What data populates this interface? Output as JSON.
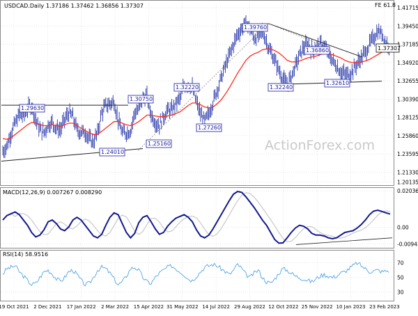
{
  "colors": {
    "background": "#ffffff",
    "frame": "#888888",
    "grid": "#d9d9d9",
    "price_bar": "#2233aa",
    "ema": "#ff2a1a",
    "trendline": "#222222",
    "macd_line": "#101890",
    "signal_line": "#c8c8c8",
    "rsi_line": "#4fa3e6",
    "label_border": "#1a1aa0",
    "label_text": "#1a1aa0",
    "watermark": "#c9c9c9",
    "last_price_box": "#ffffff"
  },
  "watermark": "ActionForex.com",
  "chart_data": [
    {
      "type": "line",
      "title": "USDCAD.Daily",
      "ohlc_text": "1.37186 1.37462 1.36856 1.37307",
      "top_right_label": "FE 61.8",
      "last_price": 1.37307,
      "last_price_label": "1.37307",
      "ylim": [
        1.199,
        1.4232
      ],
      "y_ticks": [
        "1.41715",
        "1.39450",
        "1.37185",
        "1.34920",
        "1.32655",
        "1.30390",
        "1.28125",
        "1.25860",
        "1.23595",
        "1.21330",
        "1.20135"
      ],
      "x_ticks": [
        "19 Oct 2021",
        "2 Dec 2021",
        "17 Jan 2022",
        "2 Mar 2022",
        "15 Apr 2022",
        "31 May 2022",
        "14 Jul 2022",
        "29 Aug 2022",
        "12 Oct 2022",
        "25 Nov 2022",
        "10 Jan 2023",
        "23 Feb 2023"
      ],
      "series": [
        {
          "kind": "price",
          "values": [
            1.239,
            1.246,
            1.262,
            1.274,
            1.284,
            1.283,
            1.292,
            1.296,
            1.278,
            1.266,
            1.262,
            1.272,
            1.275,
            1.268,
            1.266,
            1.278,
            1.287,
            1.282,
            1.266,
            1.263,
            1.263,
            1.254,
            1.251,
            1.262,
            1.287,
            1.296,
            1.298,
            1.301,
            1.278,
            1.262,
            1.262,
            1.265,
            1.287,
            1.291,
            1.305,
            1.307,
            1.285,
            1.275,
            1.272,
            1.282,
            1.29,
            1.29,
            1.298,
            1.305,
            1.32,
            1.322,
            1.318,
            1.3,
            1.285,
            1.276,
            1.286,
            1.3,
            1.315,
            1.33,
            1.345,
            1.358,
            1.372,
            1.385,
            1.391,
            1.398,
            1.392,
            1.38,
            1.38,
            1.388,
            1.375,
            1.362,
            1.352,
            1.34,
            1.328,
            1.322,
            1.332,
            1.345,
            1.358,
            1.368,
            1.372,
            1.365,
            1.368,
            1.371,
            1.369,
            1.36,
            1.352,
            1.345,
            1.338,
            1.334,
            1.335,
            1.34,
            1.348,
            1.355,
            1.362,
            1.372,
            1.38,
            1.388,
            1.385,
            1.373,
            1.371
          ]
        },
        {
          "kind": "ema",
          "values": [
            1.255,
            1.254,
            1.256,
            1.26,
            1.264,
            1.268,
            1.272,
            1.275,
            1.274,
            1.272,
            1.271,
            1.271,
            1.272,
            1.271,
            1.27,
            1.272,
            1.274,
            1.274,
            1.271,
            1.268,
            1.265,
            1.262,
            1.26,
            1.26,
            1.264,
            1.268,
            1.272,
            1.276,
            1.276,
            1.274,
            1.272,
            1.271,
            1.273,
            1.276,
            1.28,
            1.284,
            1.284,
            1.283,
            1.282,
            1.282,
            1.283,
            1.284,
            1.286,
            1.288,
            1.292,
            1.296,
            1.299,
            1.299,
            1.297,
            1.294,
            1.293,
            1.294,
            1.298,
            1.303,
            1.31,
            1.318,
            1.327,
            1.336,
            1.344,
            1.352,
            1.357,
            1.36,
            1.362,
            1.365,
            1.366,
            1.366,
            1.364,
            1.361,
            1.357,
            1.352,
            1.35,
            1.35,
            1.351,
            1.353,
            1.355,
            1.356,
            1.357,
            1.359,
            1.36,
            1.36,
            1.359,
            1.357,
            1.355,
            1.352,
            1.35,
            1.349,
            1.349,
            1.35,
            1.351,
            1.353,
            1.356,
            1.359,
            1.362,
            1.364,
            1.365
          ]
        }
      ],
      "annotations": [
        "1.29630",
        "1.24010",
        "1.30750",
        "1.25160",
        "1.32220",
        "1.27260",
        "1.39760",
        "1.32240",
        "1.36860",
        "1.32610"
      ]
    },
    {
      "type": "line",
      "title": "MACD(12,26,9) 0.007267 0.008290",
      "ylim": [
        -0.0112,
        0.0212
      ],
      "y_ticks": [
        "0.02036",
        "0.00",
        "-0.009438"
      ],
      "series": [
        {
          "kind": "macd",
          "values": [
            0.004,
            0.0065,
            0.0075,
            0.0085,
            0.007,
            0.004,
            0.001,
            -0.003,
            -0.0055,
            -0.0045,
            -0.0015,
            0.003,
            0.004,
            0.002,
            -0.001,
            -0.002,
            0.0,
            0.004,
            0.0055,
            0.004,
            0.001,
            -0.002,
            -0.005,
            -0.006,
            -0.004,
            0.001,
            0.0055,
            0.008,
            0.007,
            0.002,
            -0.003,
            -0.006,
            -0.0035,
            0.0025,
            0.0055,
            0.0065,
            0.003,
            -0.001,
            -0.004,
            -0.003,
            0.0005,
            0.003,
            0.005,
            0.006,
            0.007,
            0.0055,
            0.003,
            -0.0015,
            -0.005,
            -0.006,
            -0.0045,
            -0.001,
            0.003,
            0.007,
            0.011,
            0.015,
            0.0185,
            0.02,
            0.0195,
            0.017,
            0.014,
            0.011,
            0.0075,
            0.004,
            0.001,
            -0.003,
            -0.007,
            -0.009,
            -0.0088,
            -0.006,
            -0.003,
            -0.0005,
            0.001,
            0.0005,
            -0.001,
            -0.0035,
            -0.0045,
            -0.0045,
            -0.005,
            -0.006,
            -0.0065,
            -0.006,
            -0.0045,
            -0.003,
            -0.0025,
            -0.002,
            -0.0005,
            0.0015,
            0.004,
            0.007,
            0.009,
            0.0095,
            0.0088,
            0.008,
            0.0073
          ]
        }
      ]
    },
    {
      "type": "line",
      "title": "RSI(14) 58.9516",
      "ylim": [
        20,
        85
      ],
      "y_ticks": [
        "70",
        "50",
        "30"
      ],
      "series": [
        {
          "kind": "rsi",
          "values": [
            55,
            62,
            64,
            66,
            58,
            52,
            46,
            40,
            42,
            50,
            58,
            60,
            55,
            48,
            45,
            50,
            58,
            60,
            54,
            46,
            40,
            42,
            50,
            60,
            64,
            62,
            56,
            48,
            40,
            44,
            52,
            62,
            64,
            60,
            50,
            44,
            42,
            50,
            56,
            60,
            64,
            66,
            62,
            58,
            54,
            48,
            46,
            52,
            58,
            64,
            66,
            68,
            66,
            62,
            58,
            54,
            60,
            68,
            62,
            54,
            50,
            56,
            60,
            50,
            44,
            42,
            48,
            56,
            62,
            60,
            56,
            52,
            50,
            48,
            46,
            44,
            48,
            52,
            54,
            52,
            50,
            52,
            56,
            58,
            62,
            66,
            70,
            66,
            62,
            58,
            59,
            60,
            58,
            59,
            59
          ]
        }
      ]
    }
  ]
}
